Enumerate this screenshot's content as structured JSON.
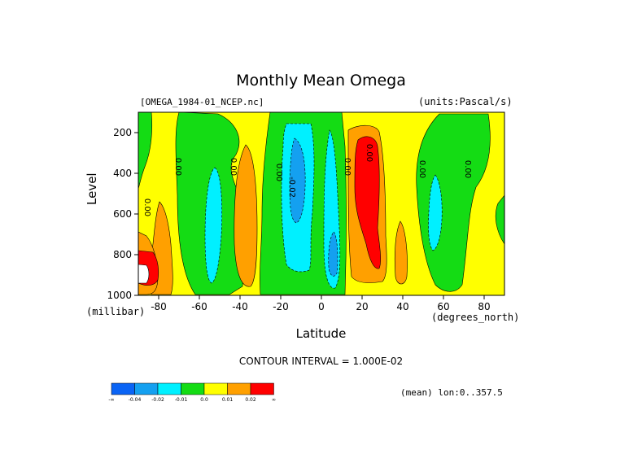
{
  "chart_data": {
    "type": "heatmap",
    "title": "Monthly Mean Omega",
    "file_label": "[OMEGA_1984-01_NCEP.nc]",
    "units_label": "(units:Pascal/s)",
    "xlabel": "Latitude",
    "x_unit": "(degrees_north)",
    "ylabel": "Level",
    "y_unit": "(millibar)",
    "xlim": [
      -90,
      90
    ],
    "ylim": [
      1000,
      100
    ],
    "x_ticks": [
      -80,
      -60,
      -40,
      -20,
      0,
      20,
      40,
      60,
      80
    ],
    "y_ticks": [
      200,
      400,
      600,
      800,
      1000
    ],
    "contour_interval_text": "CONTOUR INTERVAL = 1.000E-02",
    "mean_text": "(mean) lon:0..357.5",
    "contour_labels": [
      "0.00",
      "0.00",
      "0.00",
      "0.00",
      "-0.02",
      "0.00",
      "0.00",
      "0.00",
      "0.00"
    ],
    "colorbar": {
      "labels": [
        "-∞",
        "-0.04",
        "-0.02",
        "-0.01",
        "0.0",
        "0.01",
        "0.02",
        "∞"
      ],
      "colors": [
        "#0a64f5",
        "#14a0f0",
        "#00f0ff",
        "#14dc14",
        "#ffff00",
        "#ffa000",
        "#ff0000"
      ]
    },
    "grid": false
  }
}
